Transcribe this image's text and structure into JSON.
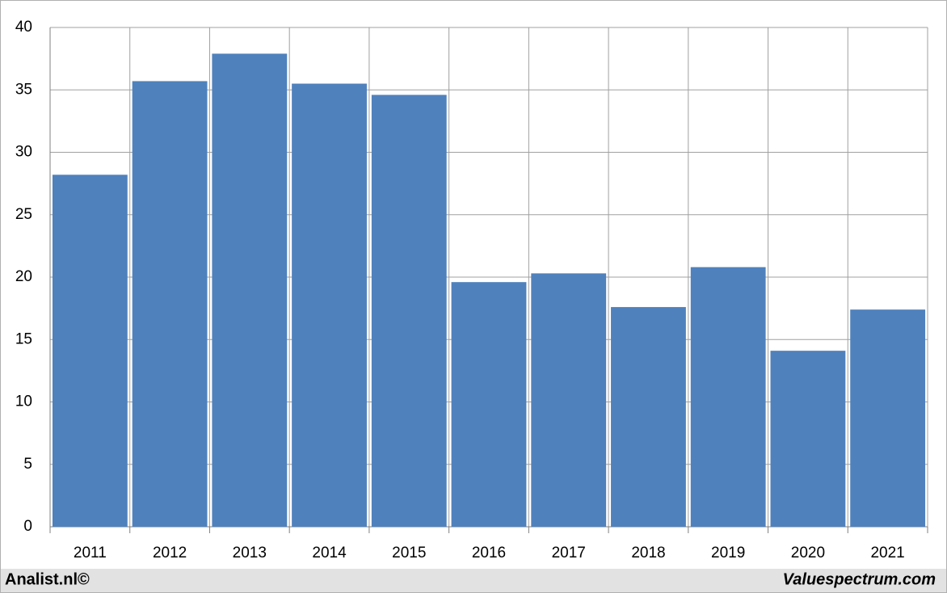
{
  "chart_data": {
    "type": "bar",
    "categories": [
      "2011",
      "2012",
      "2013",
      "2014",
      "2015",
      "2016",
      "2017",
      "2018",
      "2019",
      "2020",
      "2021"
    ],
    "values": [
      28.2,
      35.7,
      37.9,
      35.5,
      34.6,
      19.6,
      20.3,
      17.6,
      20.8,
      14.1,
      17.4
    ],
    "color": "#4f81bd",
    "ylim": [
      0,
      40
    ],
    "yticks": [
      0,
      5,
      10,
      15,
      20,
      25,
      30,
      35,
      40
    ],
    "grid": true
  },
  "footer": {
    "left": "Analist.nl©",
    "right": "Valuespectrum.com"
  }
}
